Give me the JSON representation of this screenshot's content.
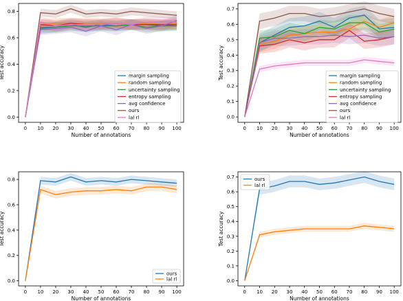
{
  "colors": {
    "blue": "#1f77b4",
    "orange": "#ff7f0e",
    "green": "#2ca02c",
    "red": "#d62728",
    "purple": "#9467bd",
    "brown": "#8c564b",
    "pink": "#e377c2"
  },
  "chart_data": [
    {
      "type": "line",
      "panel": "top-left",
      "xlabel": "Number of annotations",
      "ylabel": "Test accuracy",
      "x": [
        0,
        10,
        20,
        30,
        40,
        50,
        60,
        70,
        80,
        90,
        100
      ],
      "xticks": [
        0,
        10,
        20,
        30,
        40,
        50,
        60,
        70,
        80,
        90,
        100
      ],
      "yticks": [
        "0.0",
        "0.2",
        "0.4",
        "0.6",
        "0.8"
      ],
      "xlim": [
        -4.5,
        104.5
      ],
      "ylim": [
        -0.04,
        0.86
      ],
      "legend": "lower-right",
      "series": [
        {
          "name": "margin sampling",
          "color": "#1f77b4",
          "values": [
            0,
            0.67,
            0.68,
            0.7,
            0.68,
            0.7,
            0.69,
            0.7,
            0.7,
            0.69,
            0.7
          ],
          "band": 0.04
        },
        {
          "name": "random sampling",
          "color": "#ff7f0e",
          "values": [
            0,
            0.7,
            0.71,
            0.71,
            0.71,
            0.71,
            0.71,
            0.7,
            0.71,
            0.7,
            0.71
          ],
          "band": 0.04
        },
        {
          "name": "uncertainty sampling",
          "color": "#2ca02c",
          "values": [
            0,
            0.68,
            0.68,
            0.69,
            0.69,
            0.69,
            0.69,
            0.7,
            0.68,
            0.69,
            0.69
          ],
          "band": 0.04
        },
        {
          "name": "entropy sampling",
          "color": "#d62728",
          "values": [
            0,
            0.7,
            0.69,
            0.71,
            0.7,
            0.7,
            0.71,
            0.7,
            0.7,
            0.7,
            0.7
          ],
          "band": 0.04
        },
        {
          "name": "avg confidence",
          "color": "#9467bd",
          "values": [
            0,
            0.66,
            0.67,
            0.68,
            0.65,
            0.69,
            0.66,
            0.7,
            0.67,
            0.69,
            0.73
          ],
          "band": 0.04
        },
        {
          "name": "ours",
          "color": "#8c564b",
          "values": [
            0,
            0.79,
            0.78,
            0.82,
            0.78,
            0.79,
            0.78,
            0.8,
            0.79,
            0.78,
            0.77
          ],
          "band": 0.03
        },
        {
          "name": "lal rl",
          "color": "#e377c2",
          "values": [
            0,
            0.72,
            0.69,
            0.7,
            0.7,
            0.7,
            0.71,
            0.7,
            0.72,
            0.72,
            0.72
          ],
          "band": 0.04
        }
      ]
    },
    {
      "type": "line",
      "panel": "top-right",
      "xlabel": "Number of annotations",
      "ylabel": "Test accuracy",
      "x": [
        0,
        10,
        20,
        30,
        40,
        50,
        60,
        70,
        80,
        90,
        100
      ],
      "xticks": [
        0,
        10,
        20,
        30,
        40,
        50,
        60,
        70,
        80,
        90,
        100
      ],
      "yticks": [
        "0.0",
        "0.1",
        "0.2",
        "0.3",
        "0.4",
        "0.5",
        "0.6",
        "0.7"
      ],
      "xlim": [
        -4.5,
        104.5
      ],
      "ylim": [
        -0.035,
        0.735
      ],
      "legend": "lower-right",
      "series": [
        {
          "name": "margin sampling",
          "color": "#1f77b4",
          "values": [
            0,
            0.48,
            0.53,
            0.58,
            0.59,
            0.62,
            0.58,
            0.64,
            0.66,
            0.57,
            0.58
          ],
          "band": 0.06
        },
        {
          "name": "random sampling",
          "color": "#ff7f0e",
          "values": [
            0,
            0.47,
            0.49,
            0.53,
            0.54,
            0.55,
            0.55,
            0.57,
            0.62,
            0.58,
            0.61
          ],
          "band": 0.05
        },
        {
          "name": "uncertainty sampling",
          "color": "#2ca02c",
          "values": [
            0,
            0.51,
            0.52,
            0.56,
            0.54,
            0.58,
            0.57,
            0.61,
            0.61,
            0.55,
            0.57
          ],
          "band": 0.05
        },
        {
          "name": "entropy sampling",
          "color": "#d62728",
          "values": [
            0,
            0.46,
            0.47,
            0.5,
            0.48,
            0.5,
            0.5,
            0.56,
            0.49,
            0.5,
            0.52
          ],
          "band": 0.05
        },
        {
          "name": "avg confidence",
          "color": "#9467bd",
          "values": [
            0,
            0.48,
            0.51,
            0.51,
            0.52,
            0.52,
            0.53,
            0.52,
            0.53,
            0.51,
            0.52
          ],
          "band": 0.05
        },
        {
          "name": "ours",
          "color": "#8c564b",
          "values": [
            0,
            0.62,
            0.64,
            0.67,
            0.67,
            0.65,
            0.66,
            0.68,
            0.7,
            0.67,
            0.65
          ],
          "band": 0.05
        },
        {
          "name": "lal rl",
          "color": "#e377c2",
          "values": [
            0,
            0.31,
            0.33,
            0.34,
            0.35,
            0.35,
            0.35,
            0.35,
            0.37,
            0.36,
            0.35
          ],
          "band": 0.02
        }
      ]
    },
    {
      "type": "line",
      "panel": "bottom-left",
      "xlabel": "Number of annotations",
      "ylabel": "Test accuracy",
      "x": [
        0,
        10,
        20,
        30,
        40,
        50,
        60,
        70,
        80,
        90,
        100
      ],
      "xticks": [
        0,
        10,
        20,
        30,
        40,
        50,
        60,
        70,
        80,
        90,
        100
      ],
      "yticks": [
        "0.0",
        "0.2",
        "0.4",
        "0.6",
        "0.8"
      ],
      "xlim": [
        -4.5,
        104.5
      ],
      "ylim": [
        -0.04,
        0.86
      ],
      "legend": "lower-right",
      "series": [
        {
          "name": "ours",
          "color": "#1f77b4",
          "values": [
            0,
            0.79,
            0.78,
            0.82,
            0.78,
            0.79,
            0.78,
            0.8,
            0.79,
            0.78,
            0.77
          ],
          "band": 0.03
        },
        {
          "name": "lal rl",
          "color": "#ff7f0e",
          "values": [
            0,
            0.72,
            0.68,
            0.7,
            0.71,
            0.71,
            0.72,
            0.71,
            0.74,
            0.74,
            0.72
          ],
          "band": 0.03
        }
      ]
    },
    {
      "type": "line",
      "panel": "bottom-right",
      "xlabel": "Number of annotations",
      "ylabel": "Test accuracy",
      "x": [
        0,
        10,
        20,
        30,
        40,
        50,
        60,
        70,
        80,
        90,
        100
      ],
      "xticks": [
        0,
        10,
        20,
        30,
        40,
        50,
        60,
        70,
        80,
        90,
        100
      ],
      "yticks": [
        "0.0",
        "0.1",
        "0.2",
        "0.3",
        "0.4",
        "0.5",
        "0.6",
        "0.7"
      ],
      "xlim": [
        -4.5,
        104.5
      ],
      "ylim": [
        -0.035,
        0.735
      ],
      "legend": "upper-left",
      "series": [
        {
          "name": "ours",
          "color": "#1f77b4",
          "values": [
            0,
            0.62,
            0.64,
            0.67,
            0.67,
            0.65,
            0.66,
            0.68,
            0.7,
            0.67,
            0.65
          ],
          "band": 0.04
        },
        {
          "name": "lal rl",
          "color": "#ff7f0e",
          "values": [
            0,
            0.31,
            0.33,
            0.34,
            0.35,
            0.35,
            0.35,
            0.35,
            0.37,
            0.36,
            0.35
          ],
          "band": 0.02
        }
      ]
    }
  ]
}
